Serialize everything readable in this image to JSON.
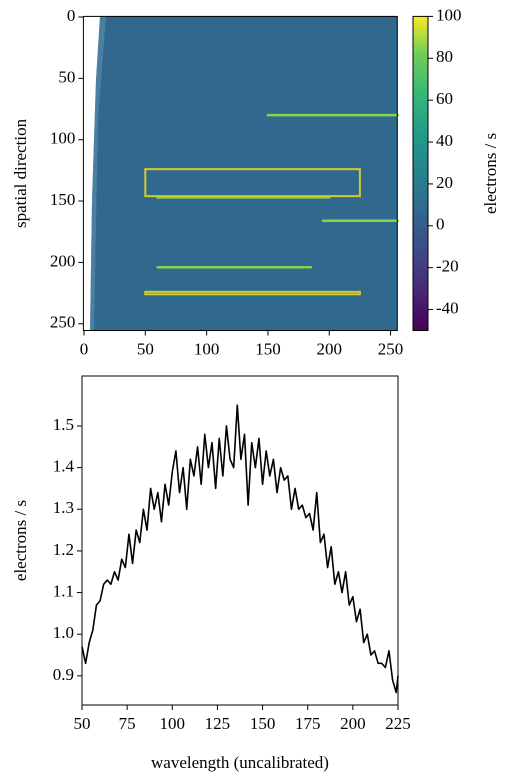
{
  "chart_data": [
    {
      "type": "image",
      "ylabel": "spatial direction",
      "xlim": [
        -0.5,
        255.5
      ],
      "xticks": [
        0,
        50,
        100,
        150,
        200,
        250
      ],
      "ylim": [
        255.5,
        -0.5
      ],
      "yticks": [
        0,
        50,
        100,
        150,
        200,
        250
      ],
      "background_color": "#31688e",
      "trace_color": "#86d549",
      "aperture_color": "#d2cc2a",
      "traces": [
        [
          150,
          256,
          80
        ],
        [
          60,
          200,
          147
        ],
        [
          195,
          256,
          166
        ],
        [
          60,
          185,
          204
        ]
      ],
      "apertures": [
        [
          50,
          225,
          124,
          146
        ],
        [
          50,
          225,
          224,
          226
        ]
      ],
      "cmap": "viridis",
      "clim": [
        -50,
        100
      ],
      "cticks": [
        -40,
        -20,
        0,
        20,
        40,
        60,
        80,
        100
      ],
      "colorbar_label": "electrons / s"
    },
    {
      "type": "line",
      "xlabel": "wavelength (uncalibrated)",
      "ylabel": "electrons / s",
      "color": "#000000",
      "xlim": [
        50,
        225
      ],
      "xticks": [
        50,
        75,
        100,
        125,
        150,
        175,
        200,
        225
      ],
      "ylim": [
        0.83,
        1.62
      ],
      "yticks": [
        0.9,
        {
          "value": 1,
          "label": "1.0"
        },
        1.1,
        1.2,
        1.3,
        1.4,
        1.5
      ],
      "x": [
        50,
        52,
        54,
        56,
        58,
        60,
        62,
        64,
        66,
        68,
        70,
        72,
        74,
        76,
        78,
        80,
        82,
        84,
        86,
        88,
        90,
        92,
        94,
        96,
        98,
        100,
        102,
        104,
        106,
        108,
        110,
        112,
        114,
        116,
        118,
        120,
        122,
        124,
        126,
        128,
        130,
        132,
        134,
        136,
        138,
        140,
        142,
        144,
        146,
        148,
        150,
        152,
        154,
        156,
        158,
        160,
        162,
        164,
        166,
        168,
        170,
        172,
        174,
        176,
        178,
        180,
        182,
        184,
        186,
        188,
        190,
        192,
        194,
        196,
        198,
        200,
        202,
        204,
        206,
        208,
        210,
        212,
        214,
        216,
        218,
        220,
        222,
        224,
        225
      ],
      "values": [
        0.97,
        0.93,
        0.98,
        1.01,
        1.07,
        1.08,
        1.12,
        1.13,
        1.12,
        1.15,
        1.13,
        1.18,
        1.16,
        1.24,
        1.17,
        1.25,
        1.22,
        1.3,
        1.25,
        1.35,
        1.3,
        1.34,
        1.27,
        1.36,
        1.31,
        1.39,
        1.44,
        1.34,
        1.4,
        1.3,
        1.42,
        1.38,
        1.45,
        1.36,
        1.48,
        1.4,
        1.46,
        1.35,
        1.47,
        1.38,
        1.5,
        1.42,
        1.4,
        1.55,
        1.42,
        1.48,
        1.31,
        1.46,
        1.4,
        1.47,
        1.36,
        1.44,
        1.38,
        1.42,
        1.34,
        1.4,
        1.37,
        1.38,
        1.3,
        1.35,
        1.3,
        1.31,
        1.28,
        1.29,
        1.25,
        1.34,
        1.22,
        1.24,
        1.16,
        1.21,
        1.12,
        1.15,
        1.1,
        1.15,
        1.07,
        1.09,
        1.03,
        1.06,
        0.98,
        1.0,
        0.95,
        0.96,
        0.93,
        0.93,
        0.92,
        0.96,
        0.89,
        0.86,
        0.9
      ]
    }
  ]
}
